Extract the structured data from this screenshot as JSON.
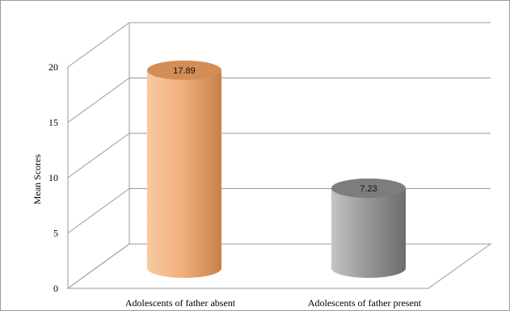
{
  "chart_data": {
    "type": "bar",
    "style": "3d-cylinder",
    "title": "",
    "xlabel": "",
    "ylabel": "Mean Scores",
    "categories": [
      "Adolescents of father absent",
      "Adolescents of father present"
    ],
    "series": [
      {
        "values": [
          17.89,
          7.23
        ]
      }
    ],
    "data_labels": [
      "17.89",
      "7.23"
    ],
    "bar_colors": [
      "#f2b27f",
      "#9a9a9a"
    ],
    "ylim": [
      0,
      20
    ],
    "yticks": [
      "0",
      "5",
      "10",
      "15",
      "20"
    ],
    "grid": true,
    "legend": "none"
  }
}
